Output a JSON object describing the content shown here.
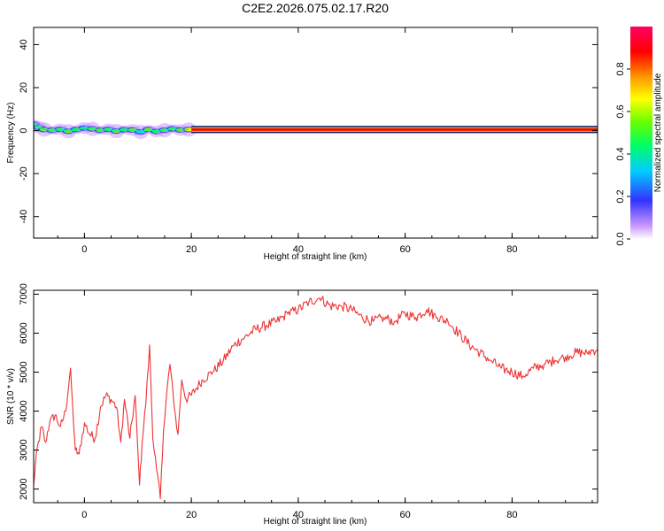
{
  "title": "C2E2.2026.075.02.17.R20",
  "chart_data": [
    {
      "type": "heatmap",
      "title": "C2E2.2026.075.02.17.R20",
      "xlabel": "Height of straight line (km)",
      "ylabel": "Frequency (Hz)",
      "xlim": [
        -9.5,
        96
      ],
      "ylim": [
        -50,
        48
      ],
      "xticks": [
        0,
        20,
        40,
        60,
        80
      ],
      "yticks": [
        -40,
        -20,
        0,
        20,
        40
      ],
      "ridge_frequency_hz": 0.5,
      "colorbar": {
        "label": "Normalized spectral amplitude",
        "range": [
          0.0,
          1.0
        ],
        "ticks": [
          0.0,
          0.2,
          0.4,
          0.6,
          0.8
        ],
        "tick_labels": [
          "0.0",
          "0.2",
          "0.4",
          "0.6",
          "0.8"
        ],
        "colors": [
          "#ffffff",
          "#cc99ff",
          "#3333ff",
          "#00ccff",
          "#00ff66",
          "#66ff00",
          "#ffff00",
          "#ff9900",
          "#ff0000",
          "#ff0066"
        ]
      },
      "segments": [
        {
          "x": [
            -9.5,
            -8.5,
            -7.5,
            -6,
            -4.5,
            -3,
            -1.5,
            0,
            1.5,
            3,
            4.5,
            6,
            7.5,
            9,
            10.5,
            12,
            13.5,
            15,
            16.5,
            18,
            19.5
          ],
          "y": [
            3,
            1.5,
            0.5,
            0.2,
            0.6,
            -0.3,
            0.5,
            1.2,
            0.8,
            0.2,
            0.6,
            -0.2,
            0.4,
            0.3,
            -0.6,
            0.5,
            -0.4,
            0.2,
            0.8,
            0.3,
            0.5
          ],
          "amplitude": [
            0.3,
            0.45,
            0.5,
            0.6,
            0.4,
            0.55,
            0.45,
            0.35,
            0.6,
            0.5,
            0.4,
            0.55,
            0.45,
            0.6,
            0.35,
            0.5,
            0.45,
            0.55,
            0.4,
            0.6,
            0.7
          ]
        }
      ],
      "band": {
        "x_start": 20,
        "x_end": 96,
        "amplitude": 0.95
      }
    },
    {
      "type": "line",
      "xlabel": "Height of straight line (km)",
      "ylabel": "SNR (10 * v/v)",
      "xlim": [
        -9.5,
        96
      ],
      "ylim": [
        1650,
        7100
      ],
      "xticks": [
        0,
        20,
        40,
        60,
        80
      ],
      "yticks": [
        2000,
        3000,
        4000,
        5000,
        6000,
        7000
      ],
      "color": "#ee3333",
      "series": [
        {
          "x": [
            -9.5,
            -9,
            -8,
            -7.3,
            -6.5,
            -5.5,
            -4.5,
            -3.5,
            -2.6,
            -2.2,
            -1.7,
            -1,
            0,
            1,
            2,
            3,
            4,
            5,
            6,
            6.8,
            7.5,
            8.5,
            9.5,
            10.3,
            10.8,
            11.5,
            12.2,
            12.8,
            13.5,
            14.2,
            14.8,
            15.5,
            16,
            16.8,
            17.5,
            18.2,
            19,
            20,
            22,
            24,
            26,
            28,
            30,
            32,
            34,
            36,
            38,
            40,
            42,
            44,
            46,
            48,
            50,
            52,
            54,
            56,
            58,
            60,
            62,
            64,
            66,
            68,
            70,
            72,
            74,
            76,
            78,
            80,
            82,
            84,
            86,
            88,
            90,
            92,
            94,
            96
          ],
          "y": [
            2100,
            2900,
            3600,
            3200,
            3700,
            3900,
            3600,
            4000,
            5100,
            4100,
            3000,
            2900,
            3700,
            3400,
            3300,
            4100,
            4400,
            4300,
            4100,
            3200,
            4300,
            3300,
            4400,
            2100,
            3200,
            4200,
            5700,
            3300,
            2500,
            1750,
            3500,
            4600,
            5200,
            4100,
            3400,
            4800,
            4300,
            4400,
            4800,
            5000,
            5300,
            5700,
            5900,
            6100,
            6200,
            6300,
            6500,
            6600,
            6800,
            6900,
            6700,
            6700,
            6600,
            6400,
            6300,
            6400,
            6300,
            6500,
            6400,
            6600,
            6400,
            6300,
            6000,
            5700,
            5500,
            5300,
            5100,
            5000,
            4900,
            5100,
            5200,
            5300,
            5400,
            5500,
            5500,
            5600
          ]
        }
      ]
    }
  ]
}
